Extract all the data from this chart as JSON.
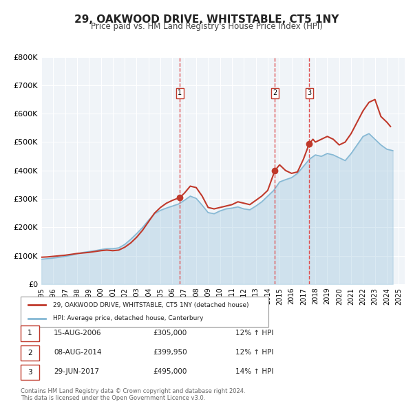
{
  "title": "29, OAKWOOD DRIVE, WHITSTABLE, CT5 1NY",
  "subtitle": "Price paid vs. HM Land Registry's House Price Index (HPI)",
  "ylabel": "",
  "ylim": [
    0,
    800000
  ],
  "yticks": [
    0,
    100000,
    200000,
    300000,
    400000,
    500000,
    600000,
    700000,
    800000
  ],
  "ytick_labels": [
    "£0",
    "£100K",
    "£200K",
    "£300K",
    "£400K",
    "£500K",
    "£600K",
    "£700K",
    "£800K"
  ],
  "xlim_start": 1995.0,
  "xlim_end": 2025.5,
  "xticks": [
    1995,
    1996,
    1997,
    1998,
    1999,
    2000,
    2001,
    2002,
    2003,
    2004,
    2005,
    2006,
    2007,
    2008,
    2009,
    2010,
    2011,
    2012,
    2013,
    2014,
    2015,
    2016,
    2017,
    2018,
    2019,
    2020,
    2021,
    2022,
    2023,
    2024,
    2025
  ],
  "price_color": "#c0392b",
  "hpi_color": "#85b8d4",
  "marker_color": "#c0392b",
  "vline_color": "#e05050",
  "background_color": "#f0f4f8",
  "plot_bg_color": "#f0f4f8",
  "legend_label_price": "29, OAKWOOD DRIVE, WHITSTABLE, CT5 1NY (detached house)",
  "legend_label_hpi": "HPI: Average price, detached house, Canterbury",
  "transactions": [
    {
      "num": 1,
      "date": 2006.62,
      "price": 305000,
      "label": "15-AUG-2006",
      "price_str": "£305,000",
      "hpi_str": "12% ↑ HPI"
    },
    {
      "num": 2,
      "date": 2014.6,
      "price": 399950,
      "label": "08-AUG-2014",
      "price_str": "£399,950",
      "hpi_str": "12% ↑ HPI"
    },
    {
      "num": 3,
      "date": 2017.49,
      "price": 495000,
      "label": "29-JUN-2017",
      "price_str": "£495,000",
      "hpi_str": "14% ↑ HPI"
    }
  ],
  "footer1": "Contains HM Land Registry data © Crown copyright and database right 2024.",
  "footer2": "This data is licensed under the Open Government Licence v3.0.",
  "price_series_x": [
    1995.0,
    1995.5,
    1996.0,
    1996.5,
    1997.0,
    1997.5,
    1998.0,
    1998.5,
    1999.0,
    1999.5,
    2000.0,
    2000.5,
    2001.0,
    2001.5,
    2002.0,
    2002.5,
    2003.0,
    2003.5,
    2004.0,
    2004.5,
    2005.0,
    2005.5,
    2006.0,
    2006.62,
    2007.0,
    2007.5,
    2008.0,
    2008.5,
    2009.0,
    2009.5,
    2010.0,
    2010.5,
    2011.0,
    2011.5,
    2012.0,
    2012.5,
    2013.0,
    2013.5,
    2014.0,
    2014.6,
    2015.0,
    2015.5,
    2016.0,
    2016.5,
    2017.0,
    2017.49,
    2017.8,
    2018.0,
    2018.5,
    2019.0,
    2019.5,
    2020.0,
    2020.5,
    2021.0,
    2021.5,
    2022.0,
    2022.5,
    2023.0,
    2023.5,
    2024.0,
    2024.3
  ],
  "price_series_y": [
    95000,
    96000,
    98000,
    100000,
    102000,
    105000,
    108000,
    110000,
    112000,
    115000,
    118000,
    120000,
    118000,
    120000,
    130000,
    145000,
    165000,
    190000,
    220000,
    250000,
    270000,
    285000,
    295000,
    305000,
    320000,
    345000,
    340000,
    310000,
    270000,
    265000,
    270000,
    275000,
    280000,
    290000,
    285000,
    280000,
    295000,
    310000,
    330000,
    399950,
    420000,
    400000,
    390000,
    395000,
    440000,
    495000,
    510000,
    500000,
    510000,
    520000,
    510000,
    490000,
    500000,
    530000,
    570000,
    610000,
    640000,
    650000,
    590000,
    570000,
    555000
  ],
  "hpi_series_x": [
    1995.0,
    1995.5,
    1996.0,
    1996.5,
    1997.0,
    1997.5,
    1998.0,
    1998.5,
    1999.0,
    1999.5,
    2000.0,
    2000.5,
    2001.0,
    2001.5,
    2002.0,
    2002.5,
    2003.0,
    2003.5,
    2004.0,
    2004.5,
    2005.0,
    2005.5,
    2006.0,
    2006.5,
    2007.0,
    2007.5,
    2008.0,
    2008.5,
    2009.0,
    2009.5,
    2010.0,
    2010.5,
    2011.0,
    2011.5,
    2012.0,
    2012.5,
    2013.0,
    2013.5,
    2014.0,
    2014.5,
    2015.0,
    2015.5,
    2016.0,
    2016.5,
    2017.0,
    2017.5,
    2018.0,
    2018.5,
    2019.0,
    2019.5,
    2020.0,
    2020.5,
    2021.0,
    2021.5,
    2022.0,
    2022.5,
    2023.0,
    2023.5,
    2024.0,
    2024.5
  ],
  "hpi_series_y": [
    88000,
    90000,
    92000,
    95000,
    98000,
    102000,
    107000,
    112000,
    115000,
    118000,
    122000,
    125000,
    125000,
    128000,
    140000,
    158000,
    178000,
    200000,
    225000,
    248000,
    260000,
    268000,
    275000,
    282000,
    295000,
    310000,
    302000,
    278000,
    252000,
    248000,
    258000,
    265000,
    268000,
    272000,
    265000,
    262000,
    275000,
    290000,
    310000,
    330000,
    360000,
    368000,
    375000,
    390000,
    415000,
    440000,
    455000,
    450000,
    460000,
    455000,
    445000,
    435000,
    460000,
    490000,
    520000,
    530000,
    510000,
    490000,
    475000,
    470000
  ]
}
